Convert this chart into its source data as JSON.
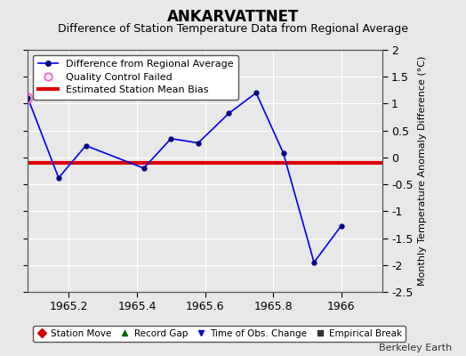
{
  "title": "ANKARVATTNET",
  "subtitle": "Difference of Station Temperature Data from Regional Average",
  "ylabel": "Monthly Temperature Anomaly Difference (°C)",
  "xlabel_ticks": [
    1965.2,
    1965.4,
    1965.6,
    1965.8,
    1966
  ],
  "x": [
    1965.08,
    1965.17,
    1965.25,
    1965.42,
    1965.5,
    1965.58,
    1965.67,
    1965.75,
    1965.83,
    1965.92,
    1966.0
  ],
  "y": [
    1.1,
    -0.38,
    0.22,
    -0.2,
    0.35,
    0.27,
    0.82,
    1.2,
    0.08,
    -1.95,
    -1.27
  ],
  "qc_x": [
    1965.08
  ],
  "qc_y": [
    1.1
  ],
  "bias": -0.1,
  "ylim": [
    -2.5,
    2.0
  ],
  "xlim": [
    1965.08,
    1966.12
  ],
  "yticks": [
    2.0,
    1.5,
    1.0,
    0.5,
    0.0,
    -0.5,
    -1.0,
    -1.5,
    -2.0,
    -2.5
  ],
  "ytick_labels": [
    "2",
    "1.5",
    "1",
    "0.5",
    "0",
    "-0.5",
    "-1",
    "-1.5",
    "-2",
    "-2.5"
  ],
  "line_color": "#0000ee",
  "marker_color": "#000080",
  "bias_color": "#dd0000",
  "qc_color": "#ff66cc",
  "bg_color": "#e8e8e8",
  "grid_color": "#ffffff",
  "legend1_labels": [
    "Difference from Regional Average",
    "Quality Control Failed",
    "Estimated Station Mean Bias"
  ],
  "legend2_labels": [
    "Station Move",
    "Record Gap",
    "Time of Obs. Change",
    "Empirical Break"
  ],
  "legend2_colors": [
    "#cc0000",
    "#006600",
    "#0000cc",
    "#333333"
  ],
  "legend2_markers": [
    "D",
    "^",
    "v",
    "s"
  ],
  "watermark": "Berkeley Earth",
  "title_fontsize": 12,
  "subtitle_fontsize": 9,
  "tick_fontsize": 9,
  "ylabel_fontsize": 8
}
